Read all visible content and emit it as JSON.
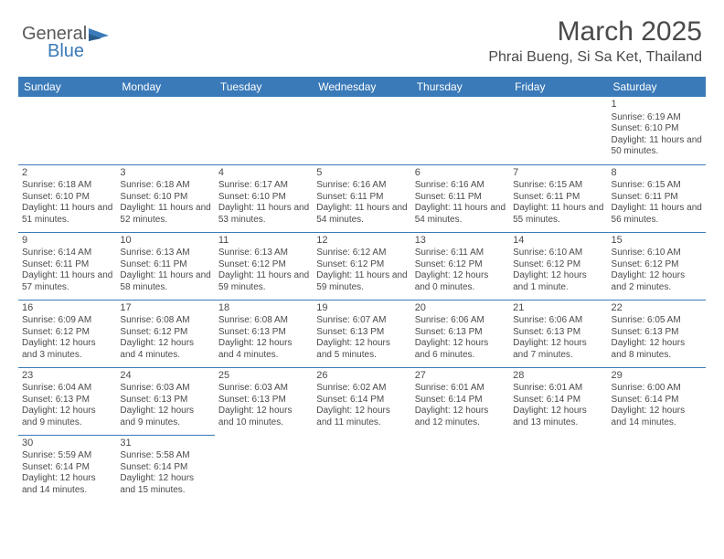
{
  "logo": {
    "word1": "General",
    "word2": "Blue"
  },
  "title": "March 2025",
  "location": "Phrai Bueng, Si Sa Ket, Thailand",
  "colors": {
    "header_bg": "#3a7ab8",
    "header_text": "#ffffff",
    "body_text": "#4a4a4a",
    "rule": "#3a7ab8",
    "background": "#ffffff"
  },
  "day_headers": [
    "Sunday",
    "Monday",
    "Tuesday",
    "Wednesday",
    "Thursday",
    "Friday",
    "Saturday"
  ],
  "weeks": [
    [
      null,
      null,
      null,
      null,
      null,
      null,
      {
        "n": "1",
        "sr": "Sunrise: 6:19 AM",
        "ss": "Sunset: 6:10 PM",
        "dl": "Daylight: 11 hours and 50 minutes."
      }
    ],
    [
      {
        "n": "2",
        "sr": "Sunrise: 6:18 AM",
        "ss": "Sunset: 6:10 PM",
        "dl": "Daylight: 11 hours and 51 minutes."
      },
      {
        "n": "3",
        "sr": "Sunrise: 6:18 AM",
        "ss": "Sunset: 6:10 PM",
        "dl": "Daylight: 11 hours and 52 minutes."
      },
      {
        "n": "4",
        "sr": "Sunrise: 6:17 AM",
        "ss": "Sunset: 6:10 PM",
        "dl": "Daylight: 11 hours and 53 minutes."
      },
      {
        "n": "5",
        "sr": "Sunrise: 6:16 AM",
        "ss": "Sunset: 6:11 PM",
        "dl": "Daylight: 11 hours and 54 minutes."
      },
      {
        "n": "6",
        "sr": "Sunrise: 6:16 AM",
        "ss": "Sunset: 6:11 PM",
        "dl": "Daylight: 11 hours and 54 minutes."
      },
      {
        "n": "7",
        "sr": "Sunrise: 6:15 AM",
        "ss": "Sunset: 6:11 PM",
        "dl": "Daylight: 11 hours and 55 minutes."
      },
      {
        "n": "8",
        "sr": "Sunrise: 6:15 AM",
        "ss": "Sunset: 6:11 PM",
        "dl": "Daylight: 11 hours and 56 minutes."
      }
    ],
    [
      {
        "n": "9",
        "sr": "Sunrise: 6:14 AM",
        "ss": "Sunset: 6:11 PM",
        "dl": "Daylight: 11 hours and 57 minutes."
      },
      {
        "n": "10",
        "sr": "Sunrise: 6:13 AM",
        "ss": "Sunset: 6:11 PM",
        "dl": "Daylight: 11 hours and 58 minutes."
      },
      {
        "n": "11",
        "sr": "Sunrise: 6:13 AM",
        "ss": "Sunset: 6:12 PM",
        "dl": "Daylight: 11 hours and 59 minutes."
      },
      {
        "n": "12",
        "sr": "Sunrise: 6:12 AM",
        "ss": "Sunset: 6:12 PM",
        "dl": "Daylight: 11 hours and 59 minutes."
      },
      {
        "n": "13",
        "sr": "Sunrise: 6:11 AM",
        "ss": "Sunset: 6:12 PM",
        "dl": "Daylight: 12 hours and 0 minutes."
      },
      {
        "n": "14",
        "sr": "Sunrise: 6:10 AM",
        "ss": "Sunset: 6:12 PM",
        "dl": "Daylight: 12 hours and 1 minute."
      },
      {
        "n": "15",
        "sr": "Sunrise: 6:10 AM",
        "ss": "Sunset: 6:12 PM",
        "dl": "Daylight: 12 hours and 2 minutes."
      }
    ],
    [
      {
        "n": "16",
        "sr": "Sunrise: 6:09 AM",
        "ss": "Sunset: 6:12 PM",
        "dl": "Daylight: 12 hours and 3 minutes."
      },
      {
        "n": "17",
        "sr": "Sunrise: 6:08 AM",
        "ss": "Sunset: 6:12 PM",
        "dl": "Daylight: 12 hours and 4 minutes."
      },
      {
        "n": "18",
        "sr": "Sunrise: 6:08 AM",
        "ss": "Sunset: 6:13 PM",
        "dl": "Daylight: 12 hours and 4 minutes."
      },
      {
        "n": "19",
        "sr": "Sunrise: 6:07 AM",
        "ss": "Sunset: 6:13 PM",
        "dl": "Daylight: 12 hours and 5 minutes."
      },
      {
        "n": "20",
        "sr": "Sunrise: 6:06 AM",
        "ss": "Sunset: 6:13 PM",
        "dl": "Daylight: 12 hours and 6 minutes."
      },
      {
        "n": "21",
        "sr": "Sunrise: 6:06 AM",
        "ss": "Sunset: 6:13 PM",
        "dl": "Daylight: 12 hours and 7 minutes."
      },
      {
        "n": "22",
        "sr": "Sunrise: 6:05 AM",
        "ss": "Sunset: 6:13 PM",
        "dl": "Daylight: 12 hours and 8 minutes."
      }
    ],
    [
      {
        "n": "23",
        "sr": "Sunrise: 6:04 AM",
        "ss": "Sunset: 6:13 PM",
        "dl": "Daylight: 12 hours and 9 minutes."
      },
      {
        "n": "24",
        "sr": "Sunrise: 6:03 AM",
        "ss": "Sunset: 6:13 PM",
        "dl": "Daylight: 12 hours and 9 minutes."
      },
      {
        "n": "25",
        "sr": "Sunrise: 6:03 AM",
        "ss": "Sunset: 6:13 PM",
        "dl": "Daylight: 12 hours and 10 minutes."
      },
      {
        "n": "26",
        "sr": "Sunrise: 6:02 AM",
        "ss": "Sunset: 6:14 PM",
        "dl": "Daylight: 12 hours and 11 minutes."
      },
      {
        "n": "27",
        "sr": "Sunrise: 6:01 AM",
        "ss": "Sunset: 6:14 PM",
        "dl": "Daylight: 12 hours and 12 minutes."
      },
      {
        "n": "28",
        "sr": "Sunrise: 6:01 AM",
        "ss": "Sunset: 6:14 PM",
        "dl": "Daylight: 12 hours and 13 minutes."
      },
      {
        "n": "29",
        "sr": "Sunrise: 6:00 AM",
        "ss": "Sunset: 6:14 PM",
        "dl": "Daylight: 12 hours and 14 minutes."
      }
    ],
    [
      {
        "n": "30",
        "sr": "Sunrise: 5:59 AM",
        "ss": "Sunset: 6:14 PM",
        "dl": "Daylight: 12 hours and 14 minutes."
      },
      {
        "n": "31",
        "sr": "Sunrise: 5:58 AM",
        "ss": "Sunset: 6:14 PM",
        "dl": "Daylight: 12 hours and 15 minutes."
      },
      null,
      null,
      null,
      null,
      null
    ]
  ]
}
